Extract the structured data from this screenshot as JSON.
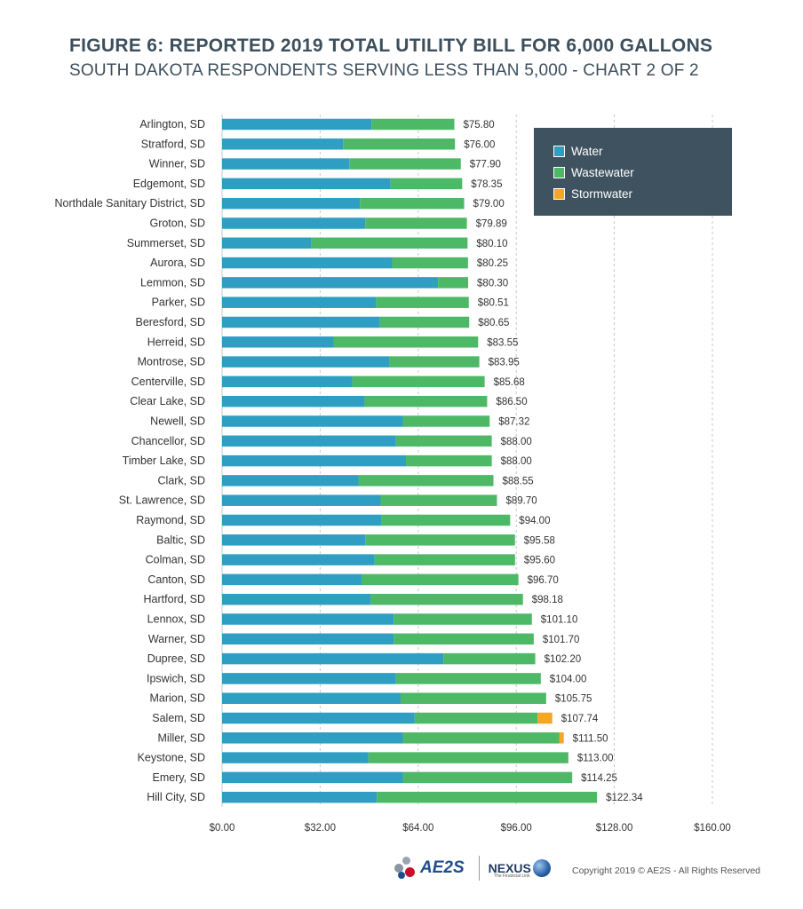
{
  "header": {
    "title": "FIGURE 6: REPORTED 2019 TOTAL UTILITY BILL FOR 6,000 GALLONS",
    "subtitle": "SOUTH DAKOTA RESPONDENTS SERVING LESS THAN 5,000 - CHART 2 OF 2"
  },
  "legend": {
    "items": [
      {
        "label": "Water",
        "color": "#2e9ec2"
      },
      {
        "label": "Wastewater",
        "color": "#4db865"
      },
      {
        "label": "Stormwater",
        "color": "#f5a623"
      }
    ]
  },
  "footer": {
    "ae2s_logo": "AE2S",
    "nexus_logo": "NEXUS",
    "nexus_tagline": "The Financial Link",
    "copyright": "Copyright 2019 © AE2S - All Rights Reserved"
  },
  "chart_data": {
    "type": "bar",
    "orientation": "horizontal",
    "stacked": true,
    "title": "FIGURE 6: REPORTED 2019 TOTAL UTILITY BILL FOR 6,000 GALLONS",
    "subtitle": "SOUTH DAKOTA RESPONDENTS SERVING LESS THAN 5,000 - CHART 2 OF 2",
    "xlim": [
      0,
      160
    ],
    "x_ticks": [
      0,
      32,
      64,
      96,
      128,
      160
    ],
    "x_tick_labels": [
      "$0.00",
      "$32.00",
      "$64.00",
      "$96.00",
      "$128.00",
      "$160.00"
    ],
    "grid": "vertical dashed",
    "legend_position": "top-right",
    "categories": [
      "Arlington, SD",
      "Stratford, SD",
      "Winner, SD",
      "Edgemont, SD",
      "Northdale Sanitary District, SD",
      "Groton, SD",
      "Summerset, SD",
      "Aurora, SD",
      "Lemmon, SD",
      "Parker, SD",
      "Beresford, SD",
      "Herreid, SD",
      "Montrose, SD",
      "Centerville, SD",
      "Clear Lake, SD",
      "Newell, SD",
      "Chancellor, SD",
      "Timber Lake, SD",
      "Clark, SD",
      "St. Lawrence, SD",
      "Raymond, SD",
      "Baltic, SD",
      "Colman, SD",
      "Canton, SD",
      "Hartford, SD",
      "Lennox, SD",
      "Warner, SD",
      "Dupree, SD",
      "Ipswich, SD",
      "Marion, SD",
      "Salem, SD",
      "Miller, SD",
      "Keystone, SD",
      "Emery, SD",
      "Hill City, SD"
    ],
    "series": [
      {
        "name": "Water",
        "values": [
          48.75,
          39.5,
          41.5,
          55.0,
          45.0,
          46.75,
          29.0,
          55.5,
          70.5,
          50.25,
          51.5,
          36.5,
          54.5,
          42.5,
          46.5,
          59.0,
          56.75,
          60.0,
          44.5,
          51.75,
          52.0,
          46.75,
          49.75,
          45.5,
          48.5,
          56.0,
          56.0,
          72.25,
          56.75,
          58.25,
          62.85,
          59.0,
          47.75,
          59.0,
          50.5
        ]
      },
      {
        "name": "Wastewater",
        "values": [
          27.05,
          36.5,
          36.4,
          23.35,
          34.0,
          33.14,
          51.1,
          24.75,
          9.8,
          30.26,
          29.15,
          47.05,
          29.45,
          43.18,
          40.0,
          28.32,
          31.25,
          28.0,
          44.05,
          37.95,
          42.0,
          48.83,
          45.85,
          51.2,
          49.68,
          45.1,
          45.7,
          29.95,
          47.25,
          47.5,
          40.1,
          51.0,
          65.25,
          55.25,
          71.84
        ]
      },
      {
        "name": "Stormwater",
        "values": [
          0,
          0,
          0,
          0,
          0,
          0,
          0,
          0,
          0,
          0,
          0,
          0,
          0,
          0,
          0,
          0,
          0,
          0,
          0,
          0,
          0,
          0,
          0,
          0,
          0,
          0,
          0,
          0,
          0,
          0,
          4.79,
          1.5,
          0,
          0,
          0
        ]
      }
    ],
    "totals": [
      75.8,
      76.0,
      77.9,
      78.35,
      79.0,
      79.89,
      80.1,
      80.25,
      80.3,
      80.51,
      80.65,
      83.55,
      83.95,
      85.68,
      86.5,
      87.32,
      88.0,
      88.0,
      88.55,
      89.7,
      94.0,
      95.58,
      95.6,
      96.7,
      98.18,
      101.1,
      101.7,
      102.2,
      104.0,
      105.75,
      107.74,
      111.5,
      113.0,
      114.25,
      122.34
    ],
    "total_labels": [
      "$75.80",
      "$76.00",
      "$77.90",
      "$78.35",
      "$79.00",
      "$79.89",
      "$80.10",
      "$80.25",
      "$80.30",
      "$80.51",
      "$80.65",
      "$83.55",
      "$83.95",
      "$85.68",
      "$86.50",
      "$87.32",
      "$88.00",
      "$88.00",
      "$88.55",
      "$89.70",
      "$94.00",
      "$95.58",
      "$95.60",
      "$96.70",
      "$98.18",
      "$101.10",
      "$101.70",
      "$102.20",
      "$104.00",
      "$105.75",
      "$107.74",
      "$111.50",
      "$113.00",
      "$114.25",
      "$122.34"
    ]
  }
}
